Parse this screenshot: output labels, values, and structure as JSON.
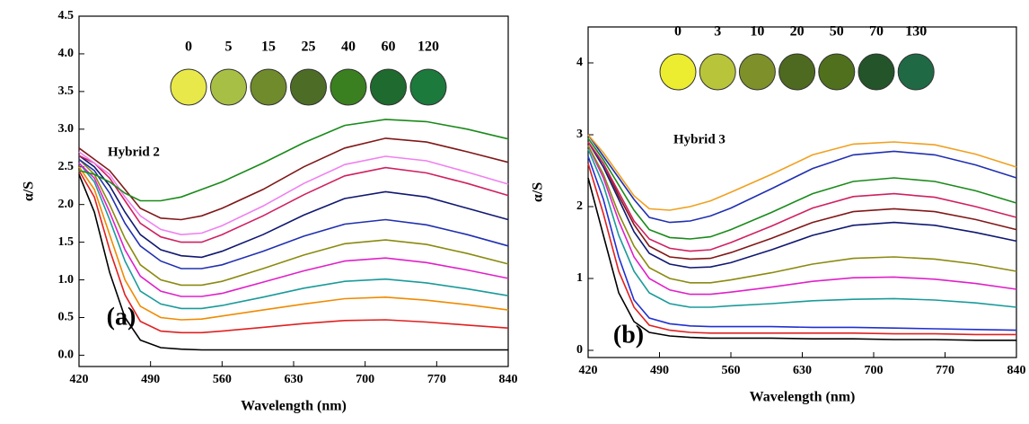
{
  "chart_data": [
    {
      "type": "line",
      "label": "Hybrid 2",
      "panel_label": "(a)",
      "x_label": "Wavelength (nm)",
      "y_label": "α/S",
      "xlim": [
        420,
        840
      ],
      "xticks": [
        420,
        490,
        560,
        630,
        700,
        770,
        840
      ],
      "ylim": [
        -0.15,
        4.5
      ],
      "yticks": [
        {
          "value": 0,
          "label": "0.0"
        },
        0.5,
        {
          "value": 1,
          "label": "1.0"
        },
        1.5,
        {
          "value": 2,
          "label": "2.0"
        },
        2.5,
        {
          "value": 3,
          "label": "3.0"
        },
        3.5,
        {
          "value": 4,
          "label": "4.0"
        },
        4.5
      ],
      "swatches": [
        {
          "label": "0",
          "color": "#e9e84a"
        },
        {
          "label": "5",
          "color": "#a8bf45"
        },
        {
          "label": "15",
          "color": "#6f8b2c"
        },
        {
          "label": "25",
          "color": "#4d6d27"
        },
        {
          "label": "40",
          "color": "#3b8020"
        },
        {
          "label": "60",
          "color": "#1f6a2e"
        },
        {
          "label": "120",
          "color": "#1c7a3c"
        }
      ],
      "x": [
        420,
        435,
        450,
        465,
        480,
        500,
        520,
        540,
        560,
        600,
        640,
        680,
        720,
        760,
        800,
        840
      ],
      "series": [
        {
          "color": "#000000",
          "values": [
            2.4,
            1.9,
            1.1,
            0.5,
            0.2,
            0.1,
            0.08,
            0.07,
            0.07,
            0.07,
            0.07,
            0.07,
            0.07,
            0.07,
            0.07,
            0.07
          ]
        },
        {
          "color": "#e02020",
          "values": [
            2.45,
            2.1,
            1.4,
            0.8,
            0.45,
            0.32,
            0.3,
            0.3,
            0.32,
            0.37,
            0.42,
            0.46,
            0.47,
            0.44,
            0.4,
            0.36
          ]
        },
        {
          "color": "#f08a00",
          "values": [
            2.5,
            2.2,
            1.6,
            1.0,
            0.65,
            0.5,
            0.47,
            0.48,
            0.52,
            0.6,
            0.68,
            0.75,
            0.77,
            0.73,
            0.67,
            0.6
          ]
        },
        {
          "color": "#1a9a9a",
          "values": [
            2.55,
            2.3,
            1.8,
            1.25,
            0.85,
            0.68,
            0.62,
            0.62,
            0.66,
            0.77,
            0.89,
            0.98,
            1.01,
            0.96,
            0.88,
            0.79
          ]
        },
        {
          "color": "#e020c8",
          "values": [
            2.55,
            2.35,
            1.9,
            1.4,
            1.05,
            0.85,
            0.78,
            0.78,
            0.82,
            0.97,
            1.12,
            1.25,
            1.29,
            1.23,
            1.13,
            1.02
          ]
        },
        {
          "color": "#8a8a10",
          "values": [
            2.6,
            2.4,
            2.0,
            1.55,
            1.2,
            1.0,
            0.93,
            0.93,
            0.98,
            1.15,
            1.33,
            1.48,
            1.53,
            1.47,
            1.35,
            1.21
          ]
        },
        {
          "color": "#2030b0",
          "values": [
            2.6,
            2.45,
            2.15,
            1.75,
            1.45,
            1.25,
            1.15,
            1.15,
            1.2,
            1.38,
            1.58,
            1.74,
            1.8,
            1.73,
            1.6,
            1.45
          ]
        },
        {
          "color": "#101870",
          "values": [
            2.65,
            2.5,
            2.25,
            1.9,
            1.6,
            1.4,
            1.32,
            1.3,
            1.38,
            1.6,
            1.86,
            2.08,
            2.17,
            2.1,
            1.95,
            1.8
          ]
        },
        {
          "color": "#d02060",
          "values": [
            2.65,
            2.55,
            2.35,
            2.05,
            1.75,
            1.57,
            1.5,
            1.5,
            1.6,
            1.85,
            2.13,
            2.38,
            2.49,
            2.42,
            2.28,
            2.12
          ]
        },
        {
          "color": "#f080f0",
          "values": [
            2.7,
            2.55,
            2.4,
            2.1,
            1.85,
            1.67,
            1.6,
            1.62,
            1.72,
            1.98,
            2.28,
            2.53,
            2.64,
            2.58,
            2.43,
            2.27
          ]
        },
        {
          "color": "#801818",
          "values": [
            2.75,
            2.6,
            2.45,
            2.2,
            1.95,
            1.82,
            1.8,
            1.85,
            1.95,
            2.2,
            2.5,
            2.75,
            2.88,
            2.83,
            2.7,
            2.56
          ]
        },
        {
          "color": "#1a8a1a",
          "values": [
            2.45,
            2.4,
            2.3,
            2.15,
            2.05,
            2.05,
            2.1,
            2.2,
            2.3,
            2.55,
            2.82,
            3.05,
            3.13,
            3.1,
            3.0,
            2.87
          ]
        }
      ]
    },
    {
      "type": "line",
      "label": "Hybrid 3",
      "panel_label": "(b)",
      "x_label": "Wavelength (nm)",
      "y_label": "α/S",
      "xlim": [
        420,
        840
      ],
      "xticks": [
        420,
        490,
        560,
        630,
        700,
        770,
        840
      ],
      "ylim": [
        -0.1,
        4.5
      ],
      "yticks": [
        0,
        1,
        2,
        3,
        4
      ],
      "swatches": [
        {
          "label": "0",
          "color": "#ecec30"
        },
        {
          "label": "3",
          "color": "#b8c43a"
        },
        {
          "label": "10",
          "color": "#7e902a"
        },
        {
          "label": "20",
          "color": "#4e6a20"
        },
        {
          "label": "50",
          "color": "#50701e"
        },
        {
          "label": "70",
          "color": "#24542a"
        },
        {
          "label": "130",
          "color": "#1f6a44"
        }
      ],
      "x": [
        420,
        435,
        450,
        465,
        480,
        500,
        520,
        540,
        560,
        600,
        640,
        680,
        720,
        760,
        800,
        840
      ],
      "series": [
        {
          "color": "#000000",
          "values": [
            2.4,
            1.6,
            0.8,
            0.4,
            0.25,
            0.2,
            0.18,
            0.17,
            0.17,
            0.17,
            0.16,
            0.16,
            0.15,
            0.15,
            0.14,
            0.14
          ]
        },
        {
          "color": "#e02020",
          "values": [
            2.6,
            1.9,
            1.1,
            0.6,
            0.35,
            0.28,
            0.25,
            0.24,
            0.24,
            0.24,
            0.24,
            0.24,
            0.23,
            0.23,
            0.22,
            0.22
          ]
        },
        {
          "color": "#2030d0",
          "values": [
            2.7,
            2.1,
            1.3,
            0.7,
            0.45,
            0.37,
            0.34,
            0.33,
            0.33,
            0.33,
            0.32,
            0.32,
            0.31,
            0.3,
            0.29,
            0.28
          ]
        },
        {
          "color": "#1a9a9a",
          "values": [
            2.8,
            2.3,
            1.6,
            1.1,
            0.8,
            0.65,
            0.6,
            0.6,
            0.62,
            0.65,
            0.69,
            0.71,
            0.72,
            0.7,
            0.66,
            0.6
          ]
        },
        {
          "color": "#e020c8",
          "values": [
            2.85,
            2.4,
            1.8,
            1.3,
            1.0,
            0.84,
            0.78,
            0.78,
            0.81,
            0.88,
            0.96,
            1.01,
            1.02,
            0.99,
            0.93,
            0.85
          ]
        },
        {
          "color": "#8a8a10",
          "values": [
            2.85,
            2.45,
            1.9,
            1.45,
            1.15,
            1.0,
            0.94,
            0.94,
            0.98,
            1.08,
            1.2,
            1.28,
            1.3,
            1.27,
            1.2,
            1.1
          ]
        },
        {
          "color": "#101870",
          "values": [
            2.9,
            2.55,
            2.1,
            1.65,
            1.35,
            1.2,
            1.15,
            1.16,
            1.22,
            1.4,
            1.6,
            1.74,
            1.78,
            1.74,
            1.64,
            1.52
          ]
        },
        {
          "color": "#801818",
          "values": [
            2.9,
            2.6,
            2.15,
            1.75,
            1.45,
            1.3,
            1.27,
            1.28,
            1.36,
            1.56,
            1.78,
            1.93,
            1.97,
            1.93,
            1.82,
            1.68
          ]
        },
        {
          "color": "#d02060",
          "values": [
            2.9,
            2.6,
            2.2,
            1.8,
            1.55,
            1.42,
            1.38,
            1.4,
            1.5,
            1.73,
            1.98,
            2.14,
            2.18,
            2.13,
            2.0,
            1.85
          ]
        },
        {
          "color": "#1a8a1a",
          "values": [
            2.95,
            2.65,
            2.3,
            1.95,
            1.68,
            1.57,
            1.55,
            1.58,
            1.68,
            1.92,
            2.18,
            2.35,
            2.4,
            2.35,
            2.22,
            2.05
          ]
        },
        {
          "color": "#2030b0",
          "values": [
            3.0,
            2.7,
            2.4,
            2.1,
            1.85,
            1.78,
            1.8,
            1.87,
            1.98,
            2.25,
            2.53,
            2.72,
            2.77,
            2.72,
            2.58,
            2.4
          ]
        },
        {
          "color": "#f0a020",
          "values": [
            3.0,
            2.75,
            2.45,
            2.15,
            1.97,
            1.95,
            2.0,
            2.08,
            2.2,
            2.45,
            2.72,
            2.87,
            2.9,
            2.86,
            2.73,
            2.55
          ]
        }
      ]
    }
  ]
}
